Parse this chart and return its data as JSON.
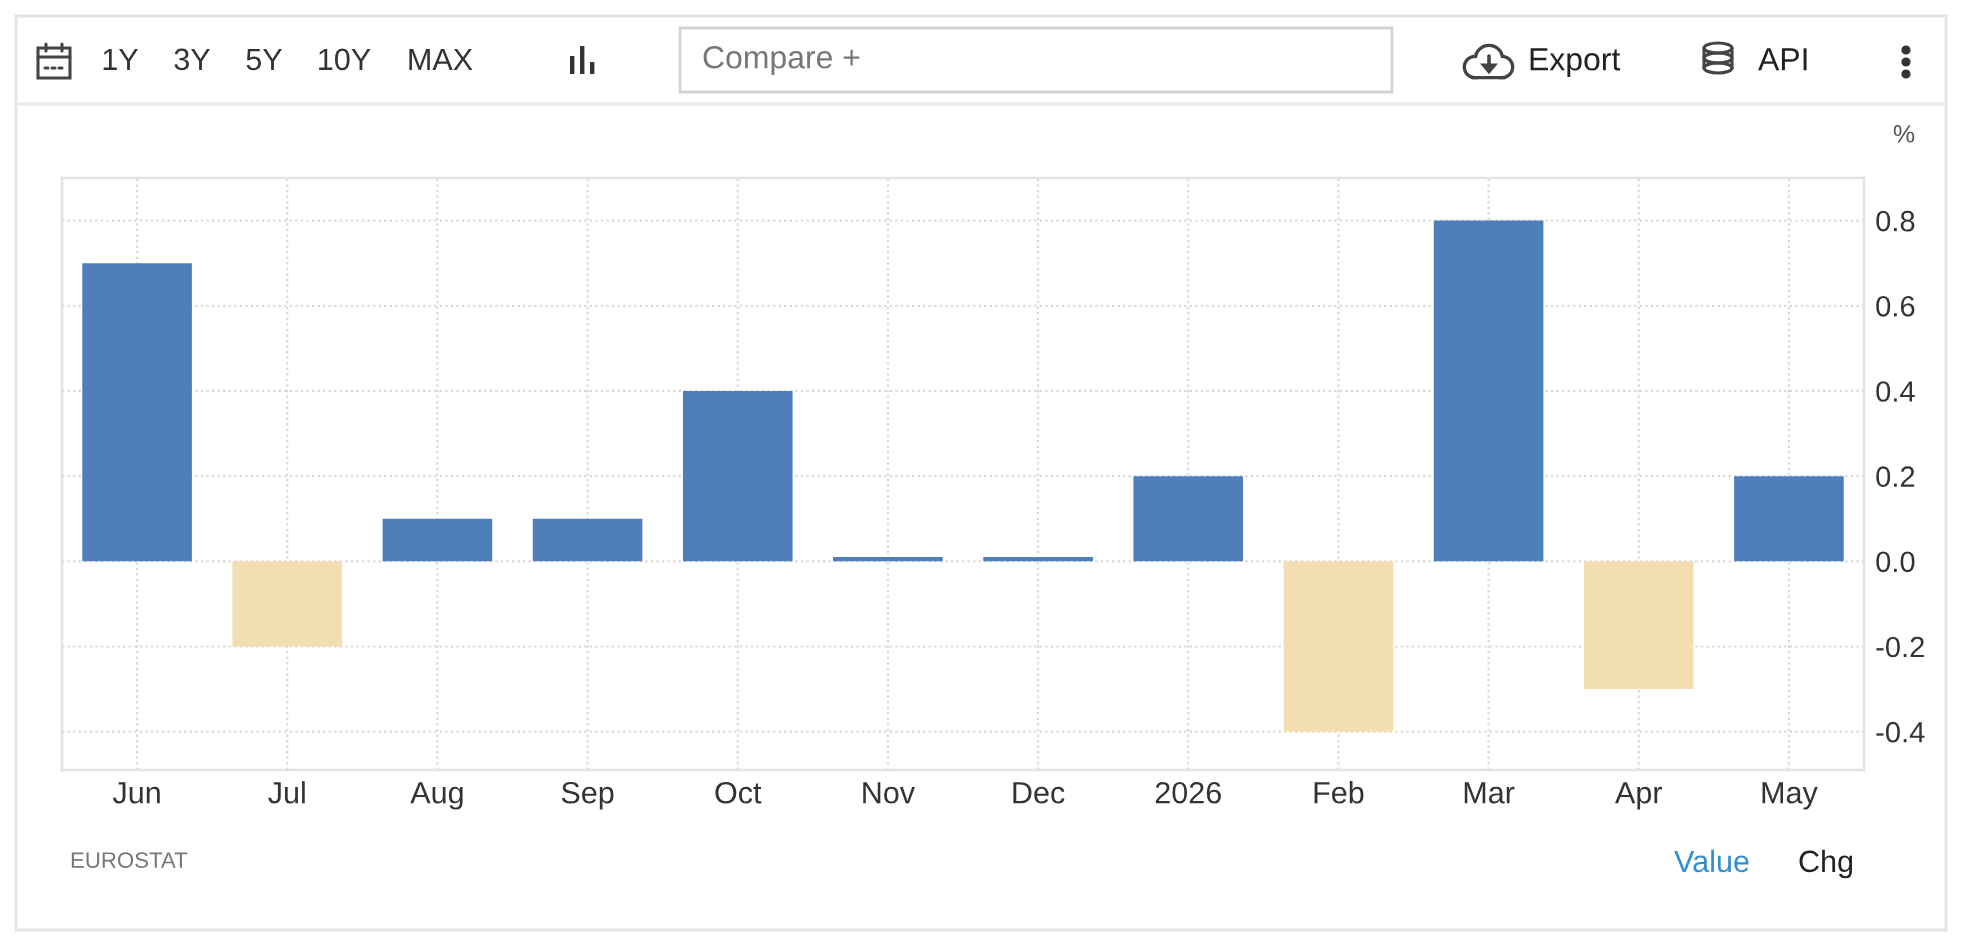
{
  "chart_data": {
    "type": "bar",
    "ylabel": "%",
    "categories": [
      "Jun",
      "Jul",
      "Aug",
      "Sep",
      "Oct",
      "Nov",
      "Dec",
      "2026",
      "Feb",
      "Mar",
      "Apr",
      "May"
    ],
    "values": [
      0.7,
      -0.2,
      0.1,
      0.1,
      0.4,
      0.01,
      0.01,
      0.2,
      -0.4,
      0.8,
      -0.3,
      0.2
    ],
    "colors": [
      "#4e7fba",
      "#f3deb1",
      "#4e7fba",
      "#4e7fba",
      "#4e7fba",
      "#4e7fba",
      "#4e7fba",
      "#4e7fba",
      "#f3deb1",
      "#4e7fba",
      "#f3deb1",
      "#4e7fba"
    ],
    "ylim": [
      -0.49,
      0.9
    ],
    "yticks": [
      -0.4,
      -0.2,
      {
        "value": 0,
        "label": "0.0"
      },
      0.2,
      0.4,
      0.6,
      0.8
    ],
    "grid": true,
    "annotations": [
      "1Y",
      "3Y",
      "5Y",
      "10Y",
      "MAX",
      "Compare +",
      "Export",
      "API",
      "EUROSTAT",
      "Value",
      "Chg"
    ]
  }
}
